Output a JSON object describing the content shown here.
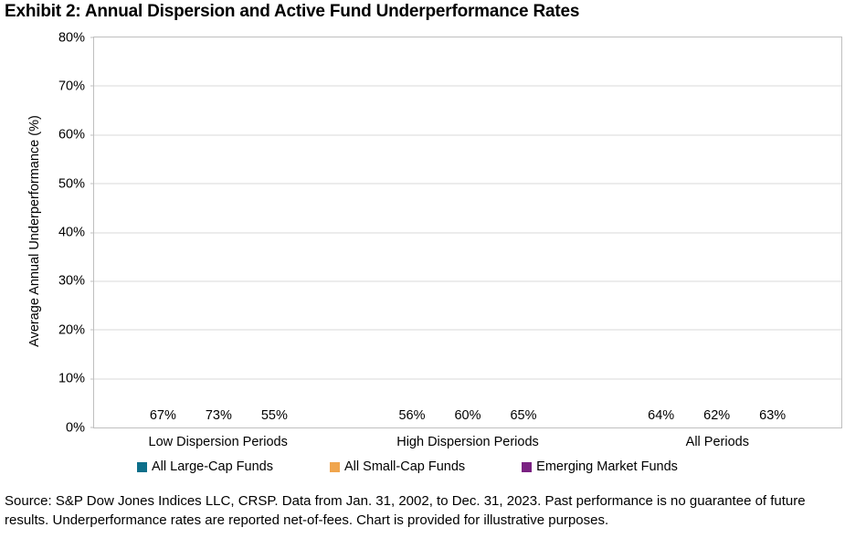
{
  "chart_data": {
    "type": "bar",
    "title": "Exhibit 2: Annual Dispersion and Active Fund Underperformance Rates",
    "xlabel": "",
    "ylabel": "Average Annual Underperformance (%)",
    "ylim": [
      0,
      80
    ],
    "ytick_step": 10,
    "ytick_suffix": "%",
    "grid": true,
    "legend_position": "bottom",
    "categories": [
      "Low Dispersion Periods",
      "High Dispersion Periods",
      "All Periods"
    ],
    "series": [
      {
        "name": "All Large-Cap Funds",
        "color": "#0d6f8a",
        "values": [
          67,
          56,
          64
        ],
        "data_labels": [
          "67%",
          "56%",
          "64%"
        ]
      },
      {
        "name": "All Small-Cap Funds",
        "color": "#f0a54d",
        "values": [
          73,
          60,
          62
        ],
        "data_labels": [
          "73%",
          "60%",
          "62%"
        ]
      },
      {
        "name": "Emerging Market Funds",
        "color": "#7a2182",
        "values": [
          55,
          65,
          63
        ],
        "data_labels": [
          "55%",
          "65%",
          "63%"
        ]
      }
    ],
    "colors": {
      "gridline": "#d9d9d9",
      "axis_border": "#bfbfbf",
      "text": "#000000"
    }
  },
  "footnote": {
    "lines": [
      "Source: S&P Dow Jones Indices LLC, CRSP. Data from Jan. 31, 2002, to Dec. 31, 2023. Past performance is no guarantee of future",
      "results. Underperformance rates are reported net-of-fees. Chart is provided for illustrative purposes."
    ]
  }
}
